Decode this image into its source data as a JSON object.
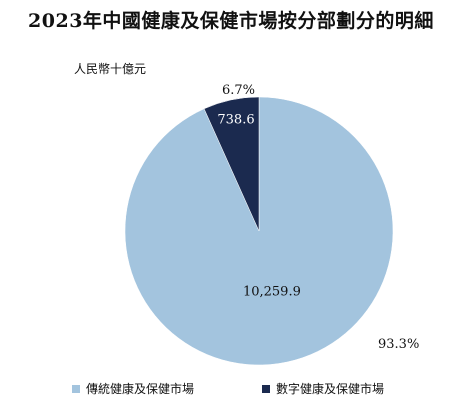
{
  "chart_data": {
    "type": "pie",
    "title": "2023年中國健康及保健市場按分部劃分的明細",
    "unit_label": "人民幣十億元",
    "slices": [
      {
        "name": "傳統健康及保健市場",
        "value": 10259.9,
        "value_label": "10,259.9",
        "percent_label": "93.3%",
        "color": "#a3c4de"
      },
      {
        "name": "數字健康及保健市場",
        "value": 738.6,
        "value_label": "738.6",
        "percent_label": "6.7%",
        "color": "#1b2a4f"
      }
    ],
    "legend_position": "bottom"
  }
}
